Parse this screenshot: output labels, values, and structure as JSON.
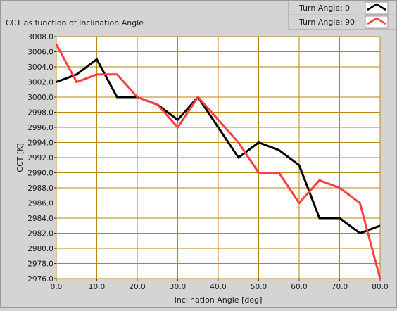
{
  "chart_data": {
    "type": "line",
    "title": "CCT as function of Inclination Angle",
    "xlabel": "Inclination Angle [deg]",
    "ylabel": "CCT [K]",
    "xlim": [
      0,
      80
    ],
    "ylim": [
      2976,
      3008
    ],
    "x_ticks": [
      "0.0",
      "10.0",
      "20.0",
      "30.0",
      "40.0",
      "50.0",
      "60.0",
      "70.0",
      "80.0"
    ],
    "y_ticks": [
      "3008.0",
      "3006.0",
      "3004.0",
      "3002.0",
      "3000.0",
      "2998.0",
      "2996.0",
      "2994.0",
      "2992.0",
      "2990.0",
      "2988.0",
      "2986.0",
      "2984.0",
      "2982.0",
      "2980.0",
      "2978.0",
      "2976.0"
    ],
    "grid": true,
    "legend_position": "top-right",
    "x": [
      0,
      5,
      10,
      15,
      20,
      25,
      30,
      35,
      40,
      45,
      50,
      55,
      60,
      65,
      70,
      75,
      80
    ],
    "series": [
      {
        "legend_label": "Turn Angle:",
        "legend_value": "0",
        "color": "#000000",
        "values": [
          3002,
          3003,
          3005,
          3000,
          3000,
          2999,
          2997,
          3000,
          2996,
          2992,
          2994,
          2993,
          2991,
          2984,
          2984,
          2982,
          2983
        ]
      },
      {
        "legend_label": "Turn Angle:",
        "legend_value": "90",
        "color": "#ff4040",
        "values": [
          3007,
          3002,
          3003,
          3003,
          3000,
          2999,
          2996,
          3000,
          2997,
          2994,
          2990,
          2990,
          2986,
          2989,
          2988,
          2986,
          2976
        ]
      }
    ],
    "colors": {
      "grid": "#b8860b",
      "plot_background": "#ffffff",
      "panel_background": "#d4d4d4"
    }
  }
}
